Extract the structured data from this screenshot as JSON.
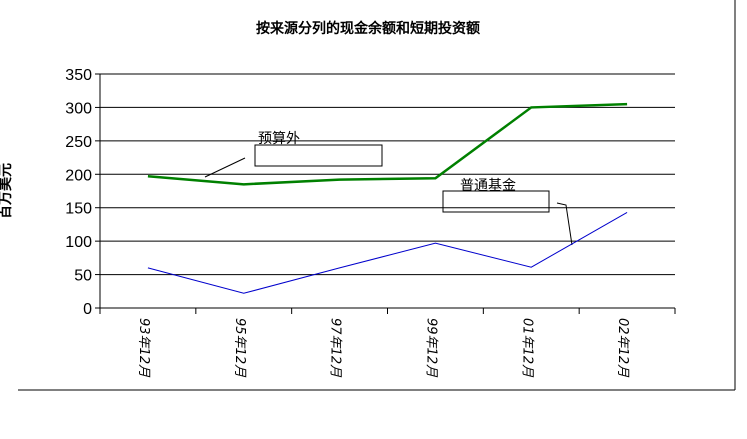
{
  "chart_data": {
    "type": "line",
    "title": "按来源分列的现金余额和短期投资额",
    "y_label": "百万美元",
    "categories": [
      "93年12月",
      "95年12月",
      "97年12月",
      "99年12月",
      "01年12月",
      "02年12月"
    ],
    "series": [
      {
        "name": "预算外",
        "color": "#008000",
        "values": [
          197,
          185,
          192,
          194,
          300,
          305
        ]
      },
      {
        "name": "普通基金",
        "color": "#0000cc",
        "values": [
          60,
          22,
          60,
          97,
          61,
          143
        ]
      }
    ],
    "ylim": [
      0,
      350
    ],
    "yticks": [
      0,
      50,
      100,
      150,
      200,
      250,
      300,
      350
    ],
    "grid": true
  }
}
